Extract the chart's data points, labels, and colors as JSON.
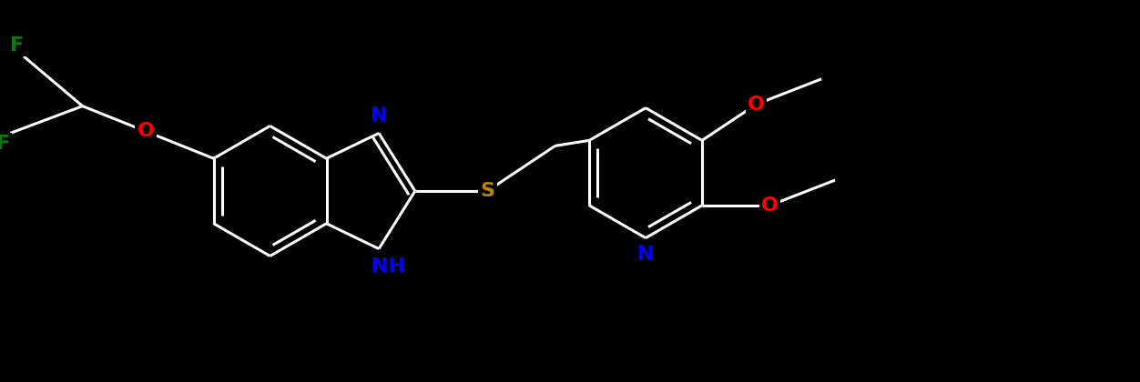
{
  "bg_color": "#000000",
  "atom_colors": {
    "F": "#008000",
    "O": "#FF0000",
    "N": "#0000FF",
    "S": "#B8860B"
  },
  "bond_width": 2.2,
  "font_size": 16
}
